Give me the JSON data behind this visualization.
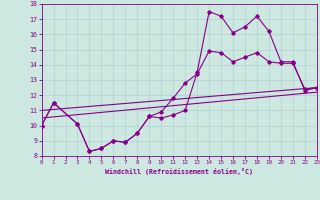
{
  "xlabel": "Windchill (Refroidissement éolien,°C)",
  "xlim": [
    0,
    23
  ],
  "ylim": [
    8,
    18
  ],
  "yticks": [
    8,
    9,
    10,
    11,
    12,
    13,
    14,
    15,
    16,
    17,
    18
  ],
  "xticks": [
    0,
    1,
    2,
    3,
    4,
    5,
    6,
    7,
    8,
    9,
    10,
    11,
    12,
    13,
    14,
    15,
    16,
    17,
    18,
    19,
    20,
    21,
    22,
    23
  ],
  "bg_color": "#cce8e0",
  "line_color": "#880088",
  "grid_color": "#aacccc",
  "line1_x": [
    0,
    1,
    3,
    4,
    5,
    6,
    7,
    8,
    9,
    10,
    11,
    12,
    13,
    14,
    15,
    16,
    17,
    18,
    19,
    20,
    21,
    22,
    23
  ],
  "line1_y": [
    10,
    11.5,
    10.1,
    8.3,
    8.5,
    9.0,
    8.9,
    9.5,
    10.6,
    10.5,
    10.7,
    11.0,
    13.5,
    17.5,
    17.2,
    16.1,
    16.5,
    17.2,
    16.2,
    14.2,
    14.2,
    12.3,
    12.5
  ],
  "line2_x": [
    0,
    1,
    3,
    4,
    5,
    6,
    7,
    8,
    9,
    10,
    11,
    12,
    13,
    14,
    15,
    16,
    17,
    18,
    19,
    20,
    21,
    22,
    23
  ],
  "line2_y": [
    10,
    11.5,
    10.1,
    8.3,
    8.5,
    9.0,
    8.9,
    9.5,
    10.6,
    10.9,
    11.8,
    12.8,
    13.4,
    14.9,
    14.8,
    14.2,
    14.5,
    14.8,
    14.2,
    14.1,
    14.1,
    12.4,
    12.5
  ],
  "line3_x": [
    0,
    23
  ],
  "line3_y": [
    10.5,
    12.2
  ],
  "line4_x": [
    0,
    23
  ],
  "line4_y": [
    11.0,
    12.5
  ]
}
